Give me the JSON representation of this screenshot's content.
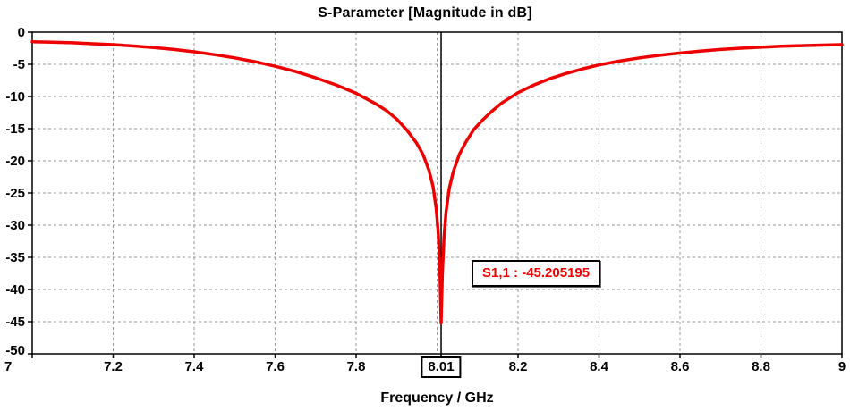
{
  "chart_data": {
    "type": "line",
    "title": "S-Parameter [Magnitude in dB]",
    "xlabel": "Frequency / GHz",
    "ylabel": "",
    "xlim": [
      7,
      9
    ],
    "ylim": [
      -50,
      0
    ],
    "grid": "dashed",
    "legend_position": "none",
    "x_ticks": [
      7,
      7.2,
      7.4,
      7.6,
      7.8,
      8.2,
      8.4,
      8.6,
      8.8,
      9
    ],
    "x_tick_labels": [
      "7",
      "7.2",
      "7.4",
      "7.6",
      "7.8",
      "8.2",
      "8.4",
      "8.6",
      "8.8",
      "9"
    ],
    "y_ticks": [
      0,
      -5,
      -10,
      -15,
      -20,
      -25,
      -30,
      -35,
      -40,
      -45,
      -50
    ],
    "y_tick_labels": [
      "0",
      "-5",
      "-10",
      "-15",
      "-20",
      "-25",
      "-30",
      "-35",
      "-40",
      "-45",
      "-50"
    ],
    "x_grid": [
      7.2,
      7.4,
      7.6,
      7.8,
      8.0,
      8.2,
      8.4,
      8.6,
      8.8
    ],
    "y_grid": [
      -5,
      -10,
      -15,
      -20,
      -25,
      -30,
      -35,
      -40,
      -45
    ],
    "marker": {
      "x": 8.01,
      "y": -45.205195,
      "x_label": "8.01",
      "label": "S1,1 : -45.205195"
    },
    "colors": {
      "curve": "#ee0000",
      "grid": "#999999",
      "axis": "#000000",
      "background": "#ffffff",
      "text": "#000000"
    },
    "series": [
      {
        "name": "S1,1",
        "color": "#ee0000",
        "points": [
          [
            7.0,
            -1.5
          ],
          [
            7.05,
            -1.55
          ],
          [
            7.1,
            -1.65
          ],
          [
            7.15,
            -1.8
          ],
          [
            7.2,
            -1.95
          ],
          [
            7.25,
            -2.15
          ],
          [
            7.3,
            -2.4
          ],
          [
            7.35,
            -2.7
          ],
          [
            7.4,
            -3.05
          ],
          [
            7.45,
            -3.5
          ],
          [
            7.5,
            -4.0
          ],
          [
            7.55,
            -4.6
          ],
          [
            7.6,
            -5.3
          ],
          [
            7.65,
            -6.1
          ],
          [
            7.7,
            -7.1
          ],
          [
            7.75,
            -8.2
          ],
          [
            7.8,
            -9.5
          ],
          [
            7.85,
            -11.2
          ],
          [
            7.875,
            -12.2
          ],
          [
            7.9,
            -13.5
          ],
          [
            7.925,
            -15.2
          ],
          [
            7.95,
            -17.3
          ],
          [
            7.965,
            -19.0
          ],
          [
            7.98,
            -21.5
          ],
          [
            7.99,
            -24.0
          ],
          [
            7.998,
            -27.5
          ],
          [
            8.003,
            -31.5
          ],
          [
            8.007,
            -37.0
          ],
          [
            8.01,
            -45.205195
          ],
          [
            8.013,
            -37.5
          ],
          [
            8.017,
            -32.0
          ],
          [
            8.022,
            -28.0
          ],
          [
            8.03,
            -24.3
          ],
          [
            8.04,
            -21.7
          ],
          [
            8.055,
            -19.0
          ],
          [
            8.07,
            -17.2
          ],
          [
            8.09,
            -15.2
          ],
          [
            8.11,
            -13.8
          ],
          [
            8.135,
            -12.3
          ],
          [
            8.16,
            -11.0
          ],
          [
            8.2,
            -9.4
          ],
          [
            8.24,
            -8.2
          ],
          [
            8.28,
            -7.2
          ],
          [
            8.32,
            -6.4
          ],
          [
            8.36,
            -5.7
          ],
          [
            8.4,
            -5.1
          ],
          [
            8.45,
            -4.5
          ],
          [
            8.5,
            -4.0
          ],
          [
            8.55,
            -3.6
          ],
          [
            8.6,
            -3.25
          ],
          [
            8.65,
            -2.95
          ],
          [
            8.7,
            -2.7
          ],
          [
            8.75,
            -2.5
          ],
          [
            8.8,
            -2.35
          ],
          [
            8.85,
            -2.2
          ],
          [
            8.9,
            -2.1
          ],
          [
            8.95,
            -2.02
          ],
          [
            9.0,
            -1.95
          ]
        ]
      }
    ]
  }
}
